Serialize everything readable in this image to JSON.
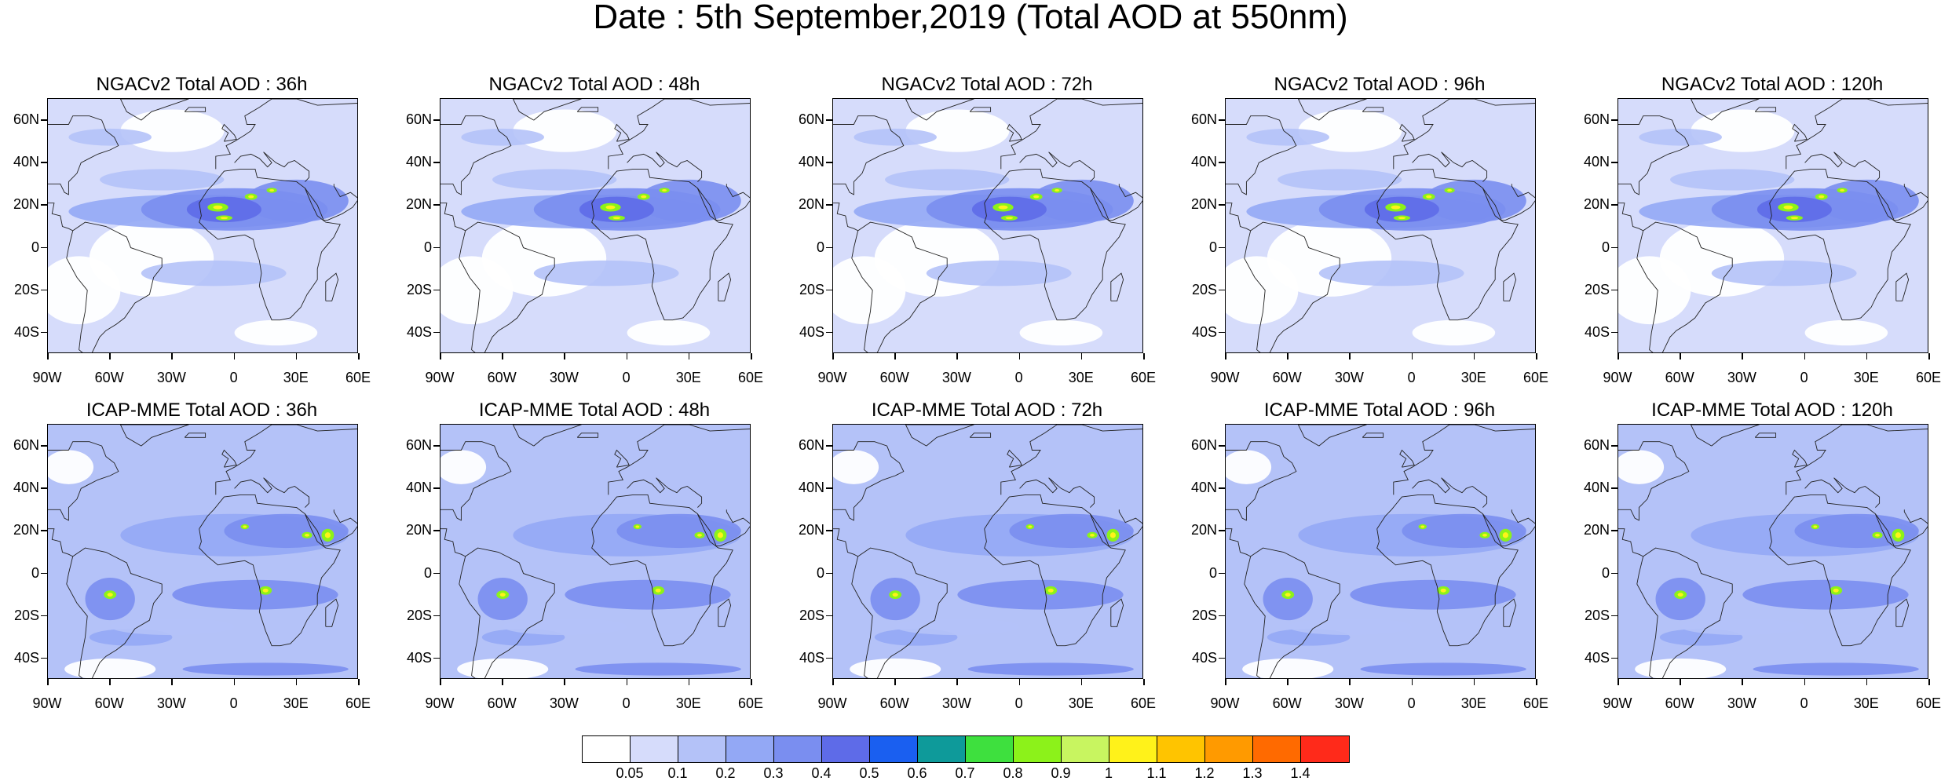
{
  "figure": {
    "title": "Date : 5th September,2019 (Total AOD at 550nm)"
  },
  "panels": [
    {
      "title": "NGACv2 Total AOD : 36h"
    },
    {
      "title": "NGACv2 Total AOD : 48h"
    },
    {
      "title": "NGACv2 Total AOD : 72h"
    },
    {
      "title": "NGACv2 Total AOD : 96h"
    },
    {
      "title": "NGACv2 Total AOD : 120h"
    },
    {
      "title": "ICAP-MME Total AOD : 36h"
    },
    {
      "title": "ICAP-MME Total AOD : 48h"
    },
    {
      "title": "ICAP-MME Total AOD : 72h"
    },
    {
      "title": "ICAP-MME Total AOD : 96h"
    },
    {
      "title": "ICAP-MME Total AOD : 120h"
    }
  ],
  "axes": {
    "lon_ticks": [
      "90W",
      "60W",
      "30W",
      "0",
      "30E",
      "60E"
    ],
    "lat_ticks": [
      "60N",
      "40N",
      "20N",
      "0",
      "20S",
      "40S"
    ],
    "lon_range": [
      -90,
      60
    ],
    "lat_range": [
      -50,
      70
    ]
  },
  "colorbar": {
    "labels": [
      "0.05",
      "0.1",
      "0.2",
      "0.3",
      "0.4",
      "0.5",
      "0.6",
      "0.7",
      "0.8",
      "0.9",
      "1",
      "1.1",
      "1.2",
      "1.3",
      "1.4"
    ],
    "colors": [
      "#ffffff",
      "#d6dcfb",
      "#b4c2f8",
      "#93a8f5",
      "#7a8ef0",
      "#5e6be8",
      "#1a5ff0",
      "#0e9a9a",
      "#3ee03e",
      "#8cf21a",
      "#c8f560",
      "#fff21a",
      "#ffc400",
      "#ff9a00",
      "#ff6a00",
      "#ff2a1a"
    ]
  }
}
